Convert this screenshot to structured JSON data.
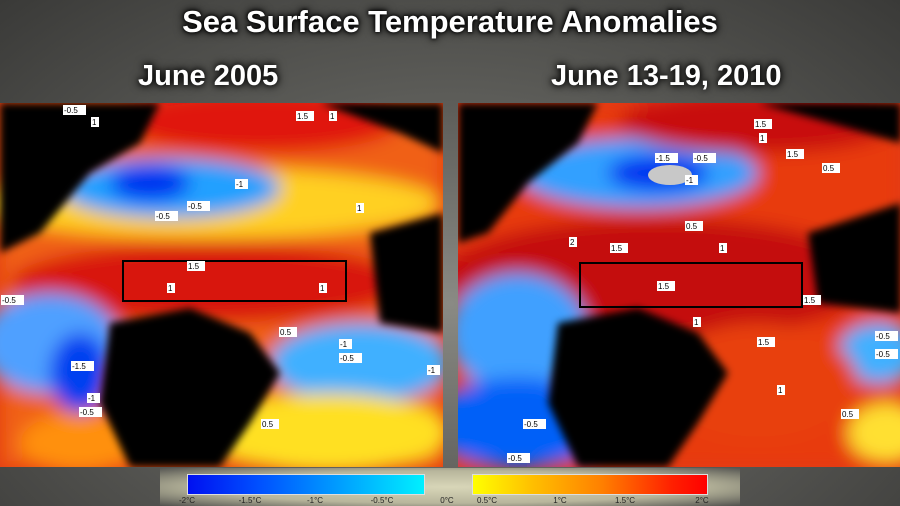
{
  "title": "Sea Surface Temperature Anomalies",
  "panels": [
    {
      "label": "June 2005",
      "contour_labels": [
        "-0.5",
        "1",
        "1.5",
        "1",
        "-1",
        "-0.5",
        "-0.5",
        "1",
        "1.5",
        "1",
        "1",
        "-0.5",
        "0.5",
        "-1",
        "-0.5",
        "-1",
        "-1.5",
        "-1",
        "-0.5",
        "0.5"
      ]
    },
    {
      "label": "June 13-19, 2010",
      "contour_labels": [
        "1.5",
        "-1.5",
        "-0.5",
        "-1",
        "1",
        "1.5",
        "0.5",
        "0.5",
        "2",
        "1.5",
        "1",
        "1.5",
        "1.5",
        "1",
        "1.5",
        "-0.5",
        "1",
        "-0.5",
        "0.5",
        "-0.5",
        "-0.5"
      ]
    }
  ],
  "colorbar": {
    "ticks": [
      "-2°C",
      "-1.5°C",
      "-1°C",
      "-0.5°C",
      "0°C",
      "0.5°C",
      "1°C",
      "1.5°C",
      "2°C"
    ],
    "colors": {
      "cold": "#0010f0",
      "cool": "#00f0ff",
      "warm": "#ffff00",
      "hot": "#ff0000"
    }
  },
  "land_color": "#000000"
}
